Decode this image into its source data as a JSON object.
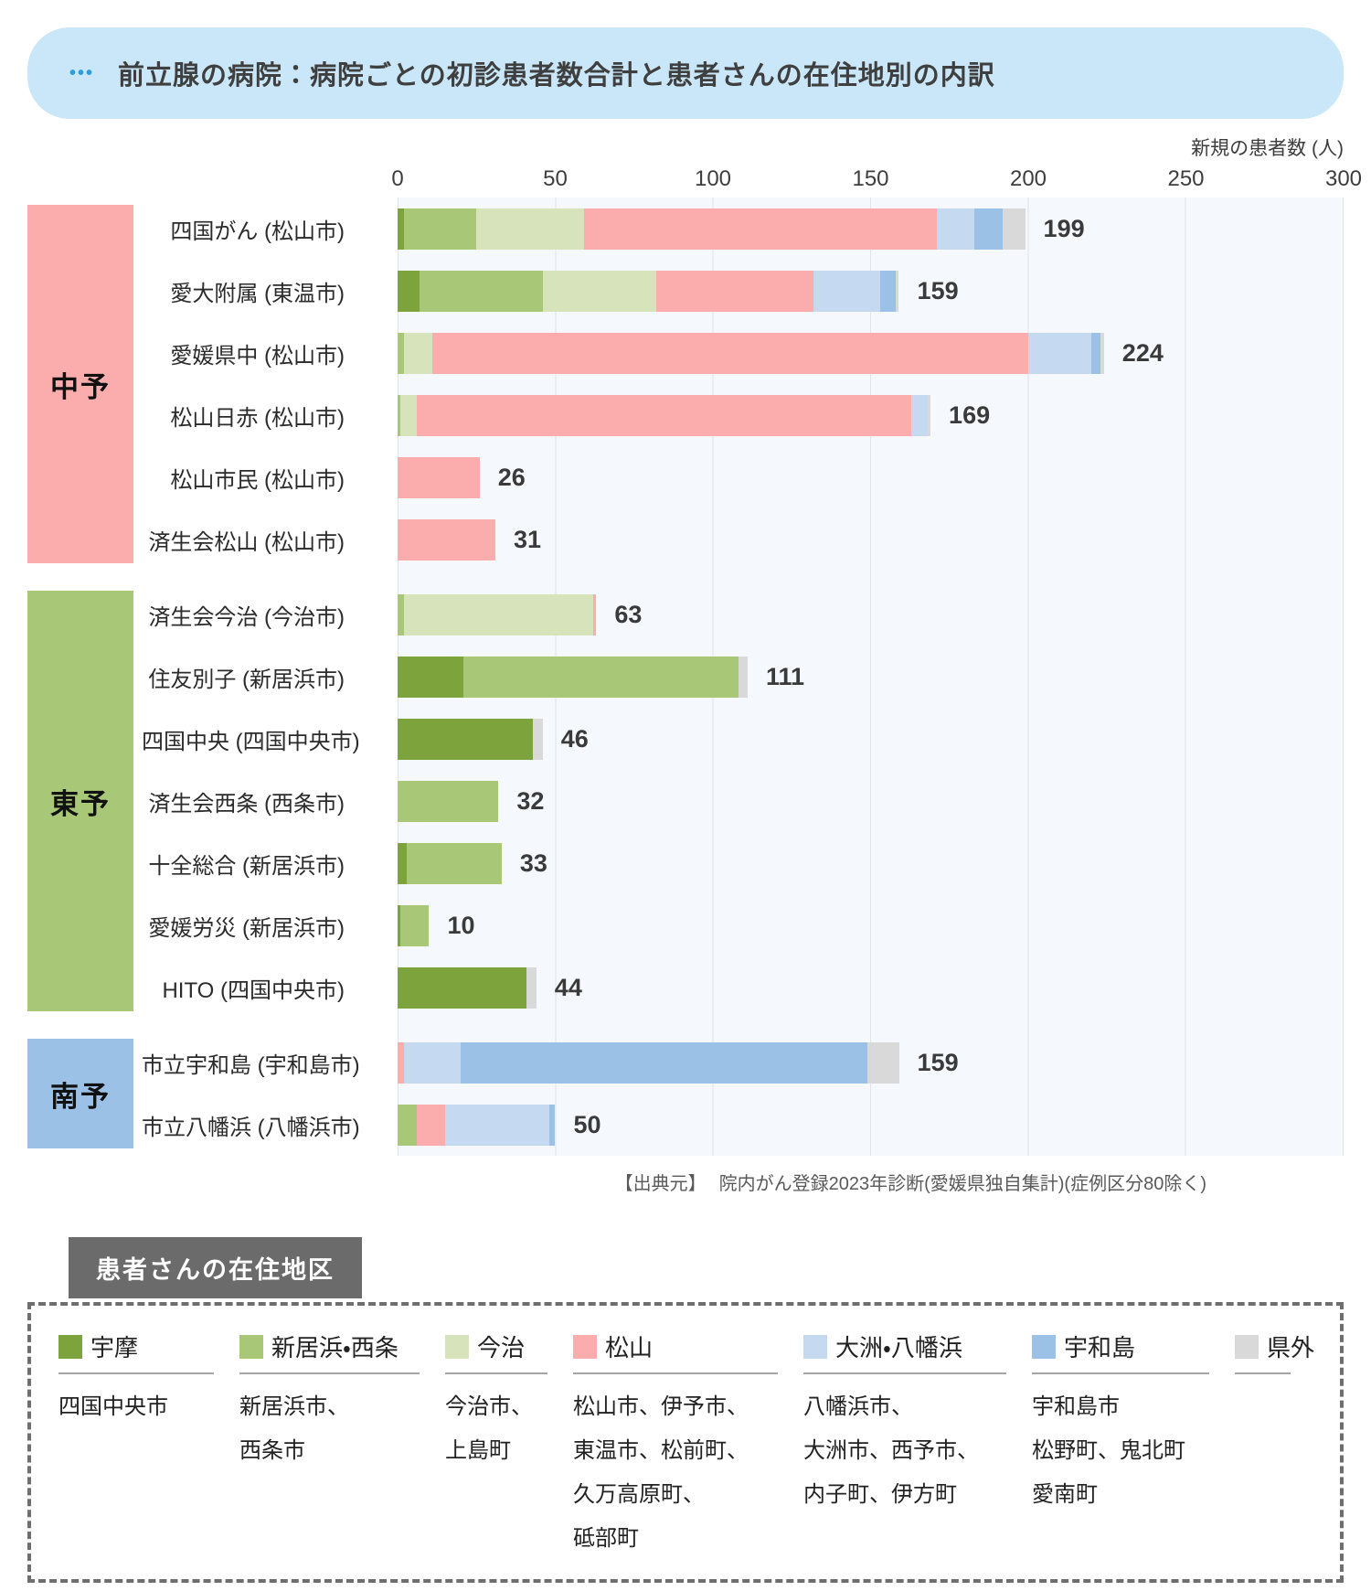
{
  "header": {
    "title": "前立腺の病院：病院ごとの初診患者数合計と患者さんの在住地別の内訳",
    "dots_icon": "•••"
  },
  "chart_data": {
    "type": "bar",
    "orientation": "horizontal-stacked",
    "axis_title": "新規の患者数 (人)",
    "x_ticks": [
      0,
      50,
      100,
      150,
      200,
      250,
      300
    ],
    "xlim": [
      0,
      300
    ],
    "grid": true,
    "series_names": [
      "宇摩",
      "新居浜・西条",
      "今治",
      "松山",
      "大洲・八幡浜",
      "宇和島",
      "県外"
    ],
    "series_colors": [
      "#7da33d",
      "#a8c878",
      "#d7e4bb",
      "#fbadad",
      "#c5daf0",
      "#9bc2e6",
      "#d9d9d9"
    ],
    "groups": [
      {
        "name": "中予",
        "color": "#fbadad",
        "hospitals": [
          {
            "label": "四国がん (松山市)",
            "total": 199,
            "values": [
              2,
              23,
              34,
              112,
              12,
              9,
              7
            ]
          },
          {
            "label": "愛大附属 (東温市)",
            "total": 159,
            "values": [
              7,
              39,
              36,
              50,
              21,
              5,
              1
            ]
          },
          {
            "label": "愛媛県中 (松山市)",
            "total": 224,
            "values": [
              0,
              2,
              9,
              189,
              20,
              3,
              1
            ]
          },
          {
            "label": "松山日赤 (松山市)",
            "total": 169,
            "values": [
              0,
              1,
              5,
              157,
              5,
              0,
              1
            ]
          },
          {
            "label": "松山市民 (松山市)",
            "total": 26,
            "values": [
              0,
              0,
              0,
              26,
              0,
              0,
              0
            ]
          },
          {
            "label": "済生会松山 (松山市)",
            "total": 31,
            "values": [
              0,
              0,
              0,
              31,
              0,
              0,
              0
            ]
          }
        ]
      },
      {
        "name": "東予",
        "color": "#a8c878",
        "hospitals": [
          {
            "label": "済生会今治 (今治市)",
            "total": 63,
            "values": [
              0,
              2,
              60,
              1,
              0,
              0,
              0
            ]
          },
          {
            "label": "住友別子 (新居浜市)",
            "total": 111,
            "values": [
              21,
              87,
              0,
              0,
              0,
              0,
              3
            ]
          },
          {
            "label": "四国中央 (四国中央市)",
            "total": 46,
            "values": [
              43,
              0,
              0,
              0,
              0,
              0,
              3
            ]
          },
          {
            "label": "済生会西条 (西条市)",
            "total": 32,
            "values": [
              0,
              32,
              0,
              0,
              0,
              0,
              0
            ]
          },
          {
            "label": "十全総合 (新居浜市)",
            "total": 33,
            "values": [
              3,
              30,
              0,
              0,
              0,
              0,
              0
            ]
          },
          {
            "label": "愛媛労災 (新居浜市)",
            "total": 10,
            "values": [
              1,
              9,
              0,
              0,
              0,
              0,
              0
            ]
          },
          {
            "label": "HITO (四国中央市)",
            "total": 44,
            "values": [
              41,
              0,
              0,
              0,
              0,
              0,
              3
            ]
          }
        ]
      },
      {
        "name": "南予",
        "color": "#9bc2e6",
        "hospitals": [
          {
            "label": "市立宇和島 (宇和島市)",
            "total": 159,
            "values": [
              0,
              0,
              0,
              2,
              18,
              129,
              10
            ]
          },
          {
            "label": "市立八幡浜 (八幡浜市)",
            "total": 50,
            "values": [
              0,
              6,
              0,
              9,
              33,
              2,
              0
            ]
          }
        ]
      }
    ]
  },
  "source": {
    "prefix": "【出典元】",
    "text": "院内がん登録2023年診断(愛媛県独自集計)(症例区分80除く)"
  },
  "legend": {
    "title": "患者さんの在住地区",
    "items": [
      {
        "name": "宇摩",
        "color": "#7da33d",
        "areas": "四国中央市"
      },
      {
        "name": "新居浜・西条",
        "color": "#a8c878",
        "areas": "新居浜市、\n西条市"
      },
      {
        "name": "今治",
        "color": "#d7e4bb",
        "areas": "今治市、\n上島町"
      },
      {
        "name": "松山",
        "color": "#fbadad",
        "areas": "松山市、伊予市、\n東温市、松前町、\n久万高原町、\n砥部町"
      },
      {
        "name": "大洲・八幡浜",
        "color": "#c5daf0",
        "areas": "八幡浜市、\n大洲市、西予市、\n内子町、伊方町"
      },
      {
        "name": "宇和島",
        "color": "#9bc2e6",
        "areas": "宇和島市\n松野町、鬼北町\n愛南町"
      },
      {
        "name": "県外",
        "color": "#d9d9d9",
        "areas": ""
      }
    ]
  }
}
